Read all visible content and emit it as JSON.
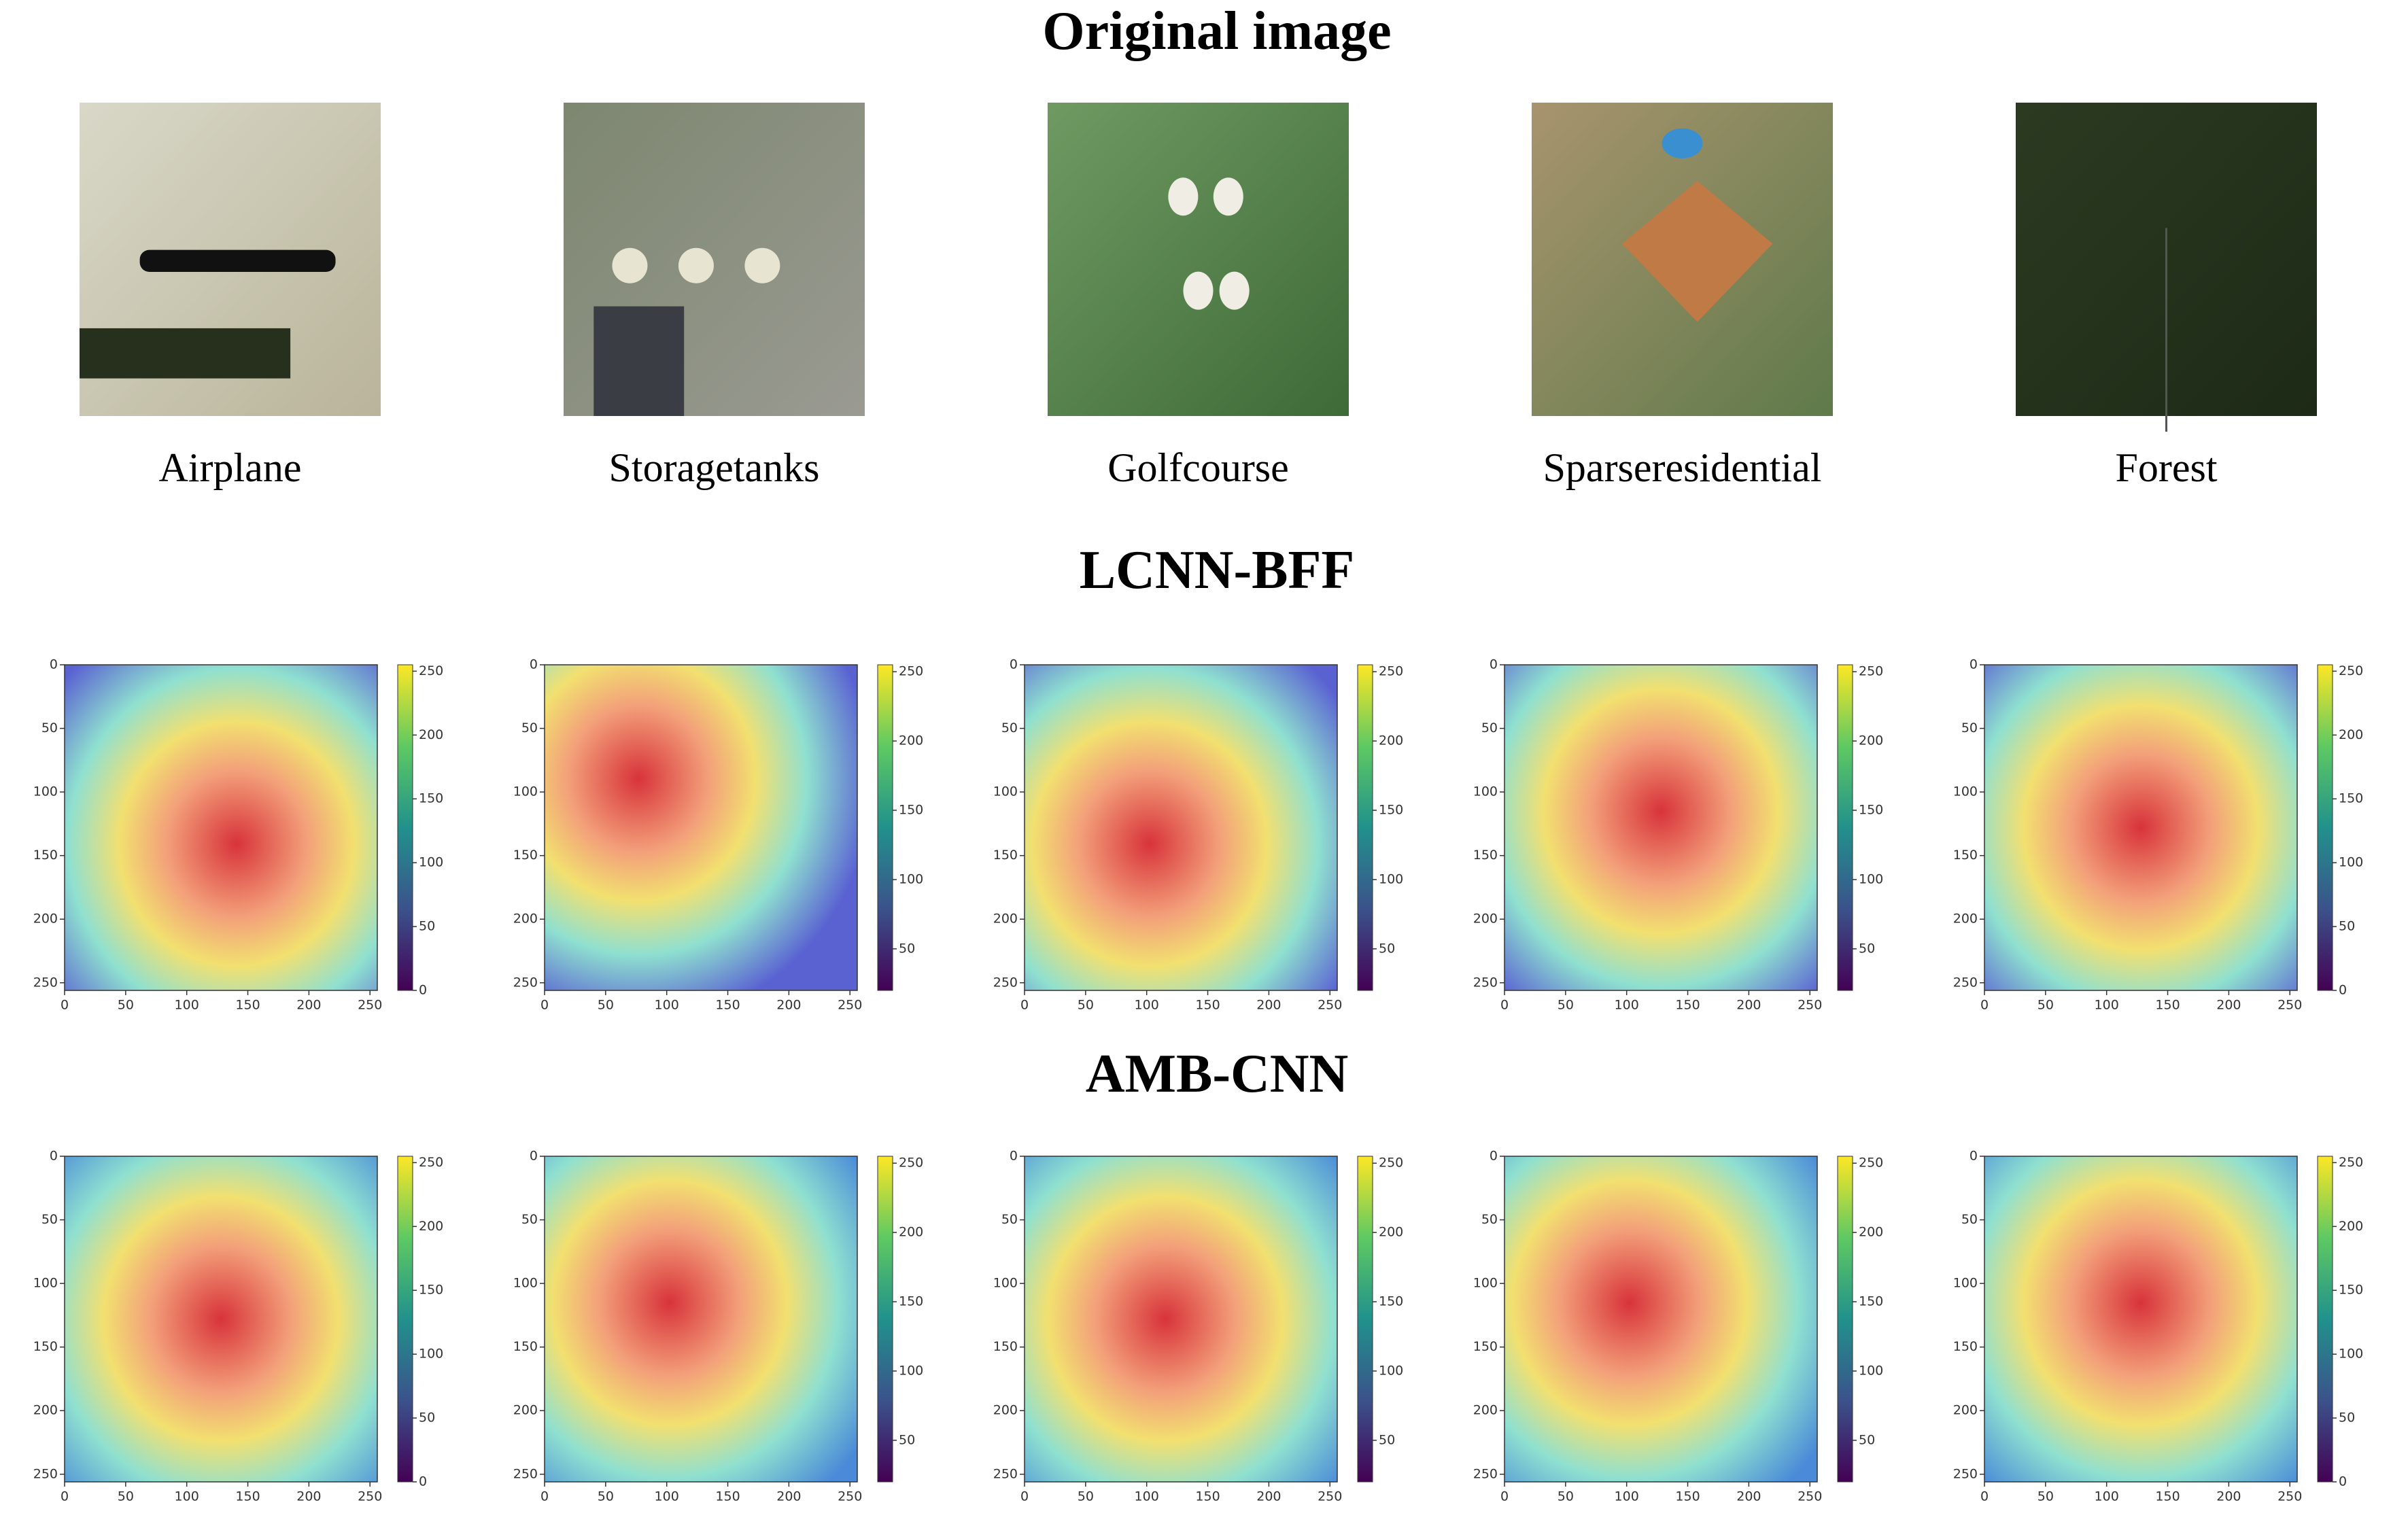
{
  "original": {
    "title": "Original image",
    "labels": [
      "Airplane",
      "Storagetanks",
      "Golfcourse",
      "Sparseresidential",
      "Forest"
    ]
  },
  "rows": [
    {
      "title": "LCNN-BFF",
      "xlim": [
        0,
        256
      ],
      "ylim": [
        256,
        0
      ],
      "xticks": [
        0,
        50,
        100,
        150,
        200,
        250
      ],
      "yticks": [
        0,
        50,
        100,
        150,
        200,
        250
      ],
      "colorbars": [
        {
          "clim": [
            0,
            255
          ],
          "ticks": [
            0,
            50,
            100,
            150,
            200,
            250
          ]
        },
        {
          "clim": [
            20,
            255
          ],
          "ticks": [
            50,
            100,
            150,
            200,
            250
          ]
        },
        {
          "clim": [
            20,
            255
          ],
          "ticks": [
            50,
            100,
            150,
            200,
            250
          ]
        },
        {
          "clim": [
            20,
            255
          ],
          "ticks": [
            50,
            100,
            150,
            200,
            250
          ]
        },
        {
          "clim": [
            0,
            255
          ],
          "ticks": [
            0,
            50,
            100,
            150,
            200,
            250
          ]
        }
      ]
    },
    {
      "title": "AMB-CNN",
      "xlim": [
        0,
        256
      ],
      "ylim": [
        256,
        0
      ],
      "xticks": [
        0,
        50,
        100,
        150,
        200,
        250
      ],
      "yticks": [
        0,
        50,
        100,
        150,
        200,
        250
      ],
      "colorbars": [
        {
          "clim": [
            0,
            255
          ],
          "ticks": [
            0,
            50,
            100,
            150,
            200,
            250
          ]
        },
        {
          "clim": [
            20,
            255
          ],
          "ticks": [
            50,
            100,
            150,
            200,
            250
          ]
        },
        {
          "clim": [
            20,
            255
          ],
          "ticks": [
            50,
            100,
            150,
            200,
            250
          ]
        },
        {
          "clim": [
            20,
            255
          ],
          "ticks": [
            50,
            100,
            150,
            200,
            250
          ]
        },
        {
          "clim": [
            0,
            255
          ],
          "ticks": [
            0,
            50,
            100,
            150,
            200,
            250
          ]
        }
      ]
    }
  ]
}
